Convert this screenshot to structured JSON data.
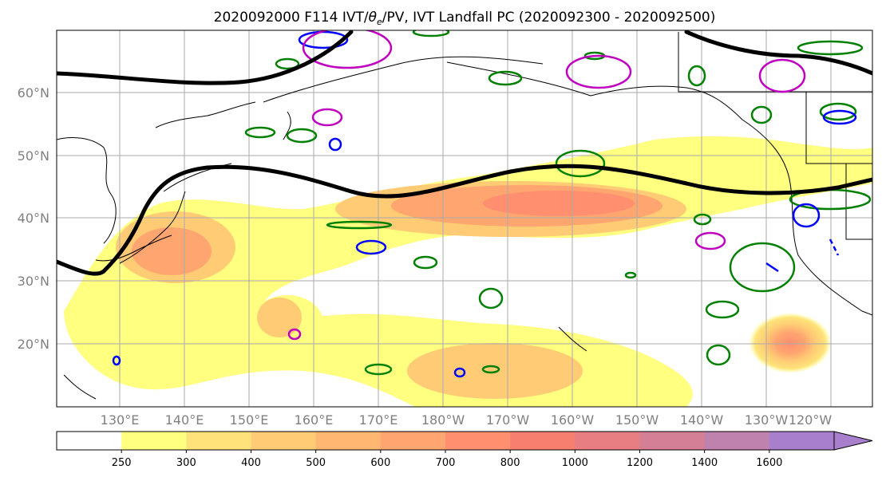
{
  "title": "2020092000 F114 IVT/θe/PV, IVT Landfall PC (2020092300 - 2020092500)",
  "title_parts": {
    "pre": "2020092000 F114 IVT/",
    "theta": "θ",
    "sub": "e",
    "post": "/PV, IVT Landfall PC (2020092300 - 2020092500)"
  },
  "map": {
    "lat_labels": [
      "60°N",
      "50°N",
      "40°N",
      "30°N",
      "20°N"
    ],
    "lon_labels": [
      "130°E",
      "140°E",
      "150°E",
      "160°E",
      "170°E",
      "180°W",
      "170°W",
      "160°W",
      "150°W",
      "140°W",
      "130°W",
      "120°W"
    ],
    "gridline_color": "#aaaaaa",
    "coast_color": "#000000"
  },
  "colorbar": {
    "levels": [
      "250",
      "300",
      "400",
      "500",
      "600",
      "700",
      "800",
      "1000",
      "1200",
      "1400",
      "1600"
    ],
    "colors": [
      "#ffffff",
      "#ffff80",
      "#ffe37a",
      "#ffcb75",
      "#ffb772",
      "#ffa570",
      "#ff8f6f",
      "#f77f70",
      "#e87e82",
      "#d47f95",
      "#bf82af",
      "#a87fcc"
    ]
  },
  "contour_colors": {
    "ivt": [
      "#ffff80",
      "#ffcb75",
      "#ffa570",
      "#ff8f6f"
    ],
    "theta_e": "#008000",
    "pv_negative": "#0000ff",
    "pv_positive": "#c000c0",
    "jet_line": "#000000"
  }
}
